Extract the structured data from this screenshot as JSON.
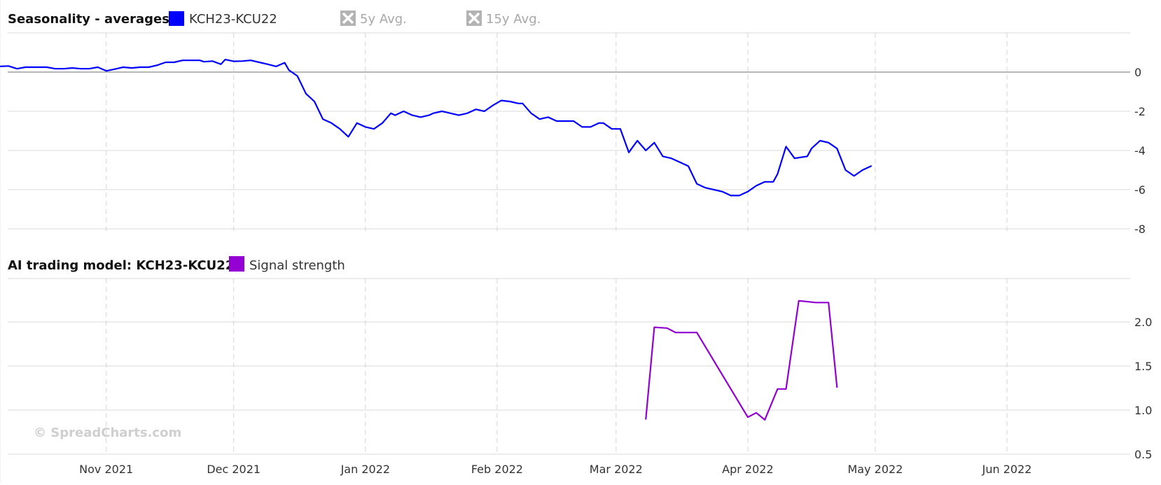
{
  "chart_data": [
    {
      "type": "line",
      "title": "Seasonality - averages",
      "legend": [
        {
          "name": "KCH23-KCU22",
          "color": "#0000ff",
          "enabled": true
        },
        {
          "name": "5y Avg.",
          "color": "#a8a8a8",
          "enabled": false
        },
        {
          "name": "15y Avg.",
          "color": "#a8a8a8",
          "enabled": false
        }
      ],
      "x_axis": {
        "type": "date",
        "range": [
          "2021-10-07",
          "2022-06-30"
        ],
        "ticks": [
          {
            "date": "2021-11-01",
            "label": "Nov 2021"
          },
          {
            "date": "2021-12-01",
            "label": "Dec 2021"
          },
          {
            "date": "2022-01-01",
            "label": "Jan 2022"
          },
          {
            "date": "2022-02-01",
            "label": "Feb 2022"
          },
          {
            "date": "2022-03-01",
            "label": "Mar 2022"
          },
          {
            "date": "2022-04-01",
            "label": "Apr 2022"
          },
          {
            "date": "2022-05-01",
            "label": "May 2022"
          },
          {
            "date": "2022-06-01",
            "label": "Jun 2022"
          }
        ]
      },
      "y_axis": {
        "ylim": [
          -8,
          2
        ],
        "ticks": [
          0,
          -2,
          -4,
          -6,
          -8
        ],
        "zero_line": true
      },
      "grid": true,
      "series": [
        {
          "name": "KCH23-KCU22",
          "color": "#0000ff",
          "points": [
            [
              "2021-10-07",
              0.29
            ],
            [
              "2021-10-09",
              0.31
            ],
            [
              "2021-10-11",
              0.17
            ],
            [
              "2021-10-13",
              0.25
            ],
            [
              "2021-10-15",
              0.25
            ],
            [
              "2021-10-18",
              0.25
            ],
            [
              "2021-10-20",
              0.17
            ],
            [
              "2021-10-22",
              0.17
            ],
            [
              "2021-10-24",
              0.21
            ],
            [
              "2021-10-26",
              0.17
            ],
            [
              "2021-10-28",
              0.17
            ],
            [
              "2021-10-30",
              0.25
            ],
            [
              "2021-11-01",
              0.06
            ],
            [
              "2021-11-03",
              0.15
            ],
            [
              "2021-11-05",
              0.25
            ],
            [
              "2021-11-07",
              0.21
            ],
            [
              "2021-11-09",
              0.25
            ],
            [
              "2021-11-11",
              0.25
            ],
            [
              "2021-11-13",
              0.35
            ],
            [
              "2021-11-15",
              0.5
            ],
            [
              "2021-11-17",
              0.5
            ],
            [
              "2021-11-19",
              0.6
            ],
            [
              "2021-11-21",
              0.6
            ],
            [
              "2021-11-23",
              0.6
            ],
            [
              "2021-11-24",
              0.53
            ],
            [
              "2021-11-26",
              0.56
            ],
            [
              "2021-11-28",
              0.4
            ],
            [
              "2021-11-29",
              0.64
            ],
            [
              "2021-12-01",
              0.55
            ],
            [
              "2021-12-03",
              0.56
            ],
            [
              "2021-12-05",
              0.6
            ],
            [
              "2021-12-07",
              0.5
            ],
            [
              "2021-12-09",
              0.4
            ],
            [
              "2021-12-11",
              0.29
            ],
            [
              "2021-12-13",
              0.48
            ],
            [
              "2021-12-14",
              0.1
            ],
            [
              "2021-12-16",
              -0.2
            ],
            [
              "2021-12-18",
              -1.1
            ],
            [
              "2021-12-20",
              -1.5
            ],
            [
              "2021-12-22",
              -2.4
            ],
            [
              "2021-12-24",
              -2.6
            ],
            [
              "2021-12-26",
              -2.9
            ],
            [
              "2021-12-28",
              -3.3
            ],
            [
              "2021-12-30",
              -2.6
            ],
            [
              "2022-01-01",
              -2.8
            ],
            [
              "2022-01-03",
              -2.9
            ],
            [
              "2022-01-05",
              -2.6
            ],
            [
              "2022-01-07",
              -2.1
            ],
            [
              "2022-01-08",
              -2.2
            ],
            [
              "2022-01-10",
              -2.0
            ],
            [
              "2022-01-12",
              -2.2
            ],
            [
              "2022-01-14",
              -2.3
            ],
            [
              "2022-01-16",
              -2.2
            ],
            [
              "2022-01-17",
              -2.1
            ],
            [
              "2022-01-19",
              -2.0
            ],
            [
              "2022-01-21",
              -2.1
            ],
            [
              "2022-01-23",
              -2.2
            ],
            [
              "2022-01-25",
              -2.1
            ],
            [
              "2022-01-27",
              -1.9
            ],
            [
              "2022-01-29",
              -2.0
            ],
            [
              "2022-01-31",
              -1.7
            ],
            [
              "2022-02-02",
              -1.45
            ],
            [
              "2022-02-04",
              -1.5
            ],
            [
              "2022-02-06",
              -1.6
            ],
            [
              "2022-02-07",
              -1.6
            ],
            [
              "2022-02-09",
              -2.1
            ],
            [
              "2022-02-11",
              -2.4
            ],
            [
              "2022-02-13",
              -2.3
            ],
            [
              "2022-02-15",
              -2.5
            ],
            [
              "2022-02-17",
              -2.5
            ],
            [
              "2022-02-19",
              -2.5
            ],
            [
              "2022-02-21",
              -2.8
            ],
            [
              "2022-02-23",
              -2.8
            ],
            [
              "2022-02-25",
              -2.6
            ],
            [
              "2022-02-26",
              -2.6
            ],
            [
              "2022-02-28",
              -2.9
            ],
            [
              "2022-03-02",
              -2.9
            ],
            [
              "2022-03-04",
              -4.1
            ],
            [
              "2022-03-06",
              -3.5
            ],
            [
              "2022-03-08",
              -4.0
            ],
            [
              "2022-03-10",
              -3.6
            ],
            [
              "2022-03-12",
              -4.3
            ],
            [
              "2022-03-14",
              -4.4
            ],
            [
              "2022-03-16",
              -4.6
            ],
            [
              "2022-03-18",
              -4.8
            ],
            [
              "2022-03-20",
              -5.7
            ],
            [
              "2022-03-22",
              -5.9
            ],
            [
              "2022-03-24",
              -6.0
            ],
            [
              "2022-03-26",
              -6.1
            ],
            [
              "2022-03-28",
              -6.3
            ],
            [
              "2022-03-30",
              -6.3
            ],
            [
              "2022-04-01",
              -6.1
            ],
            [
              "2022-04-03",
              -5.8
            ],
            [
              "2022-04-05",
              -5.6
            ],
            [
              "2022-04-07",
              -5.6
            ],
            [
              "2022-04-08",
              -5.2
            ],
            [
              "2022-04-10",
              -3.8
            ],
            [
              "2022-04-12",
              -4.4
            ],
            [
              "2022-04-15",
              -4.3
            ],
            [
              "2022-04-16",
              -3.9
            ],
            [
              "2022-04-18",
              -3.5
            ],
            [
              "2022-04-20",
              -3.6
            ],
            [
              "2022-04-22",
              -3.9
            ],
            [
              "2022-04-24",
              -5.0
            ],
            [
              "2022-04-26",
              -5.3
            ],
            [
              "2022-04-28",
              -5.0
            ],
            [
              "2022-04-30",
              -4.8
            ]
          ]
        }
      ]
    },
    {
      "type": "line",
      "title": "AI trading model: KCH23-KCU22",
      "legend": [
        {
          "name": "Signal strength",
          "color": "#9400d3",
          "enabled": true
        }
      ],
      "x_axis": {
        "type": "date",
        "range": [
          "2021-10-07",
          "2022-06-30"
        ]
      },
      "y_axis": {
        "ylim": [
          0.5,
          2.5
        ],
        "ticks": [
          2.0,
          1.5,
          1.0,
          0.5
        ]
      },
      "grid": true,
      "series": [
        {
          "name": "Signal strength",
          "color": "#9400d3",
          "points": [
            [
              "2022-03-08",
              0.9
            ],
            [
              "2022-03-10",
              1.94
            ],
            [
              "2022-03-13",
              1.93
            ],
            [
              "2022-03-15",
              1.88
            ],
            [
              "2022-03-20",
              1.88
            ],
            [
              "2022-04-01",
              0.92
            ],
            [
              "2022-04-03",
              0.97
            ],
            [
              "2022-04-05",
              0.89
            ],
            [
              "2022-04-08",
              1.24
            ],
            [
              "2022-04-10",
              1.24
            ],
            [
              "2022-04-13",
              2.24
            ],
            [
              "2022-04-15",
              2.23
            ],
            [
              "2022-04-17",
              2.22
            ],
            [
              "2022-04-20",
              2.22
            ],
            [
              "2022-04-22",
              1.26
            ]
          ]
        }
      ]
    }
  ],
  "watermark": "© SpreadCharts.com"
}
